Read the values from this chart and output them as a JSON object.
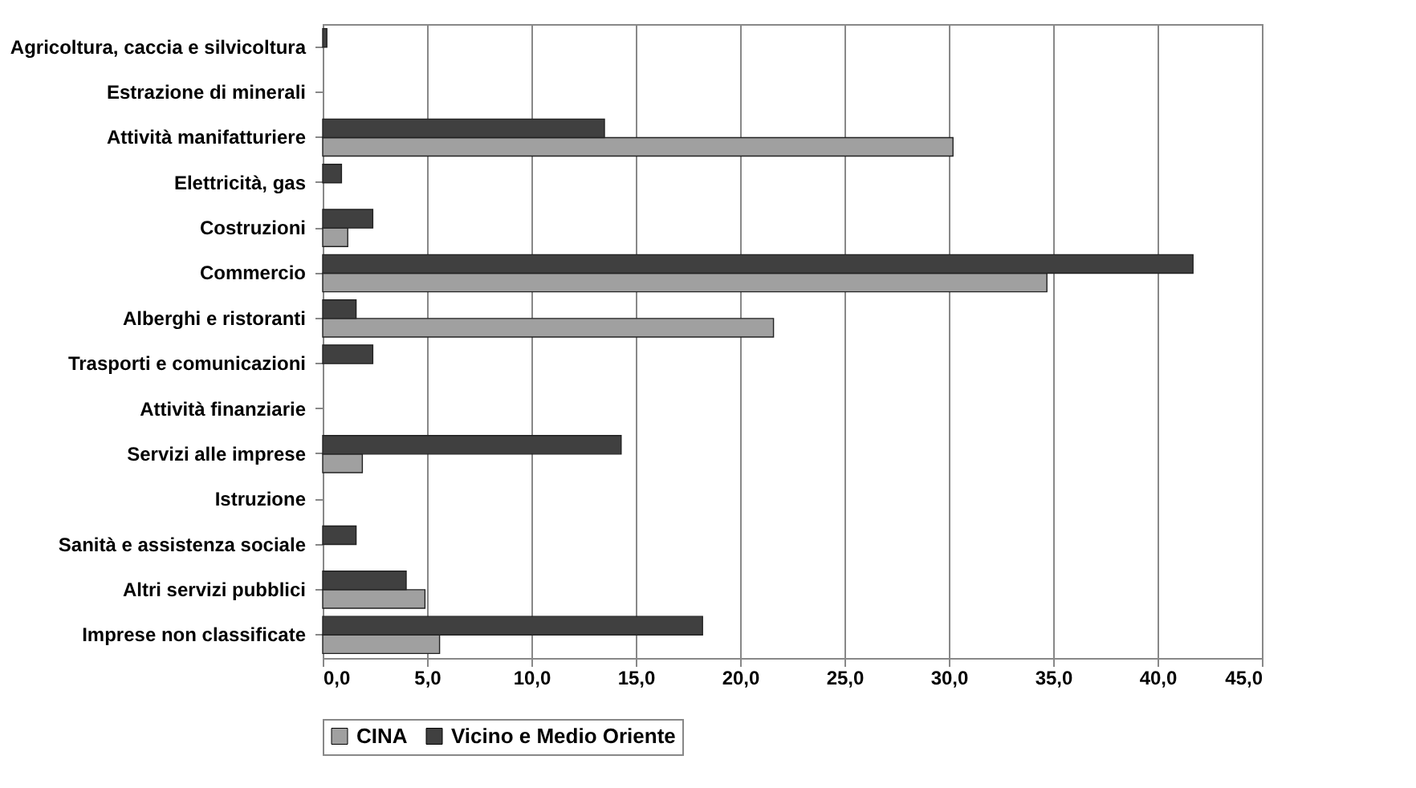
{
  "chart_data": {
    "type": "bar",
    "orientation": "horizontal",
    "categories": [
      "Agricoltura, caccia e silvicoltura",
      "Estrazione di minerali",
      "Attività manifatturiere",
      "Elettricità, gas",
      "Costruzioni",
      "Commercio",
      "Alberghi e ristoranti",
      "Trasporti e comunicazioni",
      "Attività finanziarie",
      "Servizi alle imprese",
      "Istruzione",
      "Sanità e assistenza sociale",
      "Altri servizi pubblici",
      "Imprese non classificate"
    ],
    "series": [
      {
        "name": "CINA",
        "color": "#a0a0a0",
        "values": [
          null,
          null,
          30.2,
          null,
          1.2,
          34.7,
          21.6,
          null,
          null,
          1.9,
          null,
          null,
          4.9,
          5.6
        ]
      },
      {
        "name": "Vicino e Medio Oriente",
        "color": "#404040",
        "values": [
          0.2,
          null,
          13.5,
          0.9,
          2.4,
          41.7,
          1.6,
          2.4,
          null,
          14.3,
          null,
          1.6,
          4.0,
          18.2
        ]
      }
    ],
    "xlim": [
      0,
      45
    ],
    "xticks": [
      {
        "value": 0,
        "label": "0,0"
      },
      {
        "value": 5,
        "label": "5,0"
      },
      {
        "value": 10,
        "label": "10,0"
      },
      {
        "value": 15,
        "label": "15,0"
      },
      {
        "value": 20,
        "label": "20,0"
      },
      {
        "value": 25,
        "label": "25,0"
      },
      {
        "value": 30,
        "label": "30,0"
      },
      {
        "value": 35,
        "label": "35,0"
      },
      {
        "value": 40,
        "label": "40,0"
      },
      {
        "value": 45,
        "label": "45,0"
      }
    ],
    "grid": "x",
    "legend": "bottom"
  }
}
